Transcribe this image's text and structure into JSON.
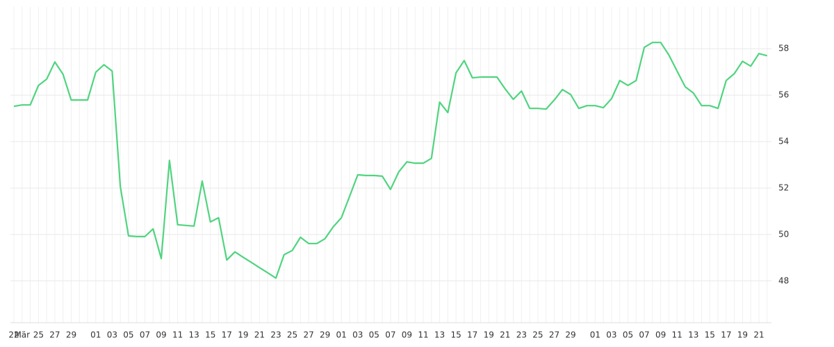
{
  "chart_data": {
    "type": "line",
    "categories": [
      "22",
      "Mär",
      null,
      "25",
      null,
      "27",
      null,
      "29",
      null,
      null,
      "01",
      null,
      "03",
      null,
      "05",
      null,
      "07",
      null,
      "09",
      null,
      "11",
      null,
      "13",
      null,
      "15",
      null,
      "17",
      null,
      "19",
      null,
      "21",
      null,
      "23",
      null,
      "25",
      null,
      "27",
      null,
      "29",
      null,
      "01",
      null,
      "03",
      null,
      "05",
      null,
      "07",
      null,
      "09",
      null,
      "11",
      null,
      "13",
      null,
      "15",
      null,
      "17",
      null,
      "19",
      null,
      "21",
      null,
      "23",
      null,
      "25",
      null,
      "27",
      null,
      "29",
      null,
      null,
      "01",
      null,
      "03",
      null,
      "05",
      null,
      "07",
      null,
      "09",
      null,
      "11",
      null,
      "13",
      null,
      "15",
      null,
      "17",
      null,
      "19",
      null,
      "21",
      null
    ],
    "series": [
      {
        "color": "#4fd47f",
        "values": [
          55.52,
          55.58,
          55.58,
          56.42,
          56.69,
          57.43,
          56.9,
          55.79,
          55.79,
          55.79,
          56.99,
          57.31,
          57.04,
          52.06,
          49.94,
          49.91,
          49.91,
          50.24,
          48.96,
          53.19,
          50.42,
          50.39,
          50.36,
          52.3,
          50.54,
          50.72,
          48.9,
          49.25,
          49.02,
          48.8,
          48.57,
          48.35,
          48.12,
          49.13,
          49.31,
          49.88,
          49.61,
          49.61,
          49.82,
          50.33,
          50.72,
          51.64,
          52.57,
          52.54,
          52.54,
          52.51,
          51.94,
          52.69,
          53.13,
          53.07,
          53.07,
          53.28,
          55.7,
          55.25,
          56.96,
          57.49,
          56.75,
          56.78,
          56.78,
          56.78,
          56.27,
          55.82,
          56.18,
          55.43,
          55.43,
          55.4,
          55.79,
          56.24,
          56.03,
          55.43,
          55.55,
          55.55,
          55.46,
          55.85,
          56.63,
          56.42,
          56.63,
          58.06,
          58.27,
          58.27,
          57.73,
          57.04,
          56.36,
          56.09,
          55.55,
          55.55,
          55.43,
          56.63,
          56.93,
          57.46,
          57.25,
          57.79,
          57.7
        ]
      }
    ],
    "ylim": [
      46.2,
      59.8
    ],
    "yticks": [
      48,
      50,
      52,
      54,
      56,
      58
    ],
    "grid": true
  }
}
